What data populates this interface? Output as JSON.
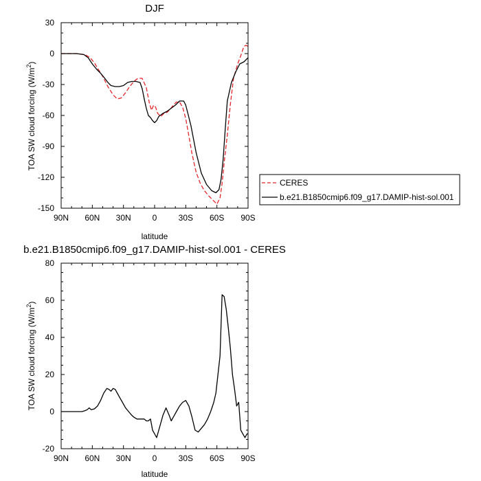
{
  "chart_data": [
    {
      "type": "line",
      "title": "DJF",
      "xlabel": "latitude",
      "ylabel": "TOA SW cloud forcing (W/m²)",
      "xlim": [
        90,
        -90
      ],
      "ylim": [
        -150,
        30
      ],
      "xticks": [
        90,
        60,
        30,
        0,
        -30,
        -60,
        -90
      ],
      "xtick_labels": [
        "90N",
        "60N",
        "30N",
        "0",
        "30S",
        "60S",
        "90S"
      ],
      "yticks": [
        30,
        0,
        -30,
        -60,
        -90,
        -120,
        -150
      ],
      "ytick_labels": [
        "30",
        "0",
        "-30",
        "-60",
        "-90",
        "-120",
        "-150"
      ],
      "legend": {
        "placement": "right",
        "entries": [
          "CERES",
          "b.e21.B1850cmip6.f09_g17.DAMIP-hist-sol.001"
        ]
      },
      "series": [
        {
          "name": "CERES",
          "color": "#e3242b",
          "dash": true,
          "x": [
            90,
            75,
            67,
            62,
            58,
            55,
            50,
            45,
            40,
            36,
            32,
            28,
            24,
            20,
            16,
            12,
            8,
            5,
            3,
            1,
            -1,
            -3,
            -6,
            -9,
            -12,
            -15,
            -18,
            -21,
            -24,
            -27,
            -30,
            -33,
            -36,
            -40,
            -44,
            -48,
            -52,
            -56,
            -60,
            -63,
            -65,
            -67,
            -70,
            -73,
            -76,
            -80,
            -83,
            -86,
            -88,
            -90
          ],
          "y": [
            0,
            0,
            -1,
            -4,
            -9,
            -14,
            -22,
            -32,
            -40,
            -44,
            -43,
            -38,
            -32,
            -27,
            -24,
            -24,
            -33,
            -48,
            -55,
            -50,
            -52,
            -58,
            -61,
            -58,
            -57,
            -54,
            -50,
            -47,
            -47,
            -52,
            -63,
            -80,
            -97,
            -115,
            -126,
            -133,
            -138,
            -142,
            -146,
            -140,
            -126,
            -106,
            -79,
            -49,
            -24,
            -10,
            -2,
            7,
            8,
            7
          ]
        },
        {
          "name": "b.e21.B1850cmip6.f09_g17.DAMIP-hist-sol.001",
          "color": "#000000",
          "dash": false,
          "x": [
            90,
            75,
            68,
            64,
            60,
            56,
            52,
            48,
            45,
            42,
            38,
            34,
            30,
            26,
            22,
            18,
            14,
            12,
            10,
            8,
            6,
            4,
            2,
            0,
            -2,
            -4,
            -8,
            -12,
            -16,
            -20,
            -24,
            -28,
            -30,
            -32,
            -35,
            -40,
            -45,
            -50,
            -55,
            -59,
            -62,
            -64,
            -66,
            -68,
            -70,
            -74,
            -78,
            -82,
            -86,
            -90
          ],
          "y": [
            0,
            0,
            -1,
            -4,
            -10,
            -15,
            -19,
            -24,
            -28,
            -31,
            -32,
            -32,
            -31,
            -28,
            -27,
            -27,
            -28,
            -34,
            -44,
            -53,
            -60,
            -62,
            -65,
            -67,
            -65,
            -61,
            -58,
            -56,
            -53,
            -50,
            -46,
            -46,
            -50,
            -58,
            -70,
            -96,
            -116,
            -127,
            -133,
            -135,
            -132,
            -122,
            -103,
            -73,
            -46,
            -28,
            -18,
            -10,
            -8,
            -4
          ]
        }
      ]
    },
    {
      "type": "line",
      "title": "b.e21.B1850cmip6.f09_g17.DAMIP-hist-sol.001 - CERES",
      "xlabel": "latitude",
      "ylabel": "TOA SW cloud forcing (W/m²)",
      "xlim": [
        90,
        -90
      ],
      "ylim": [
        -20,
        80
      ],
      "xticks": [
        90,
        60,
        30,
        0,
        -30,
        -60,
        -90
      ],
      "xtick_labels": [
        "90N",
        "60N",
        "30N",
        "0",
        "30S",
        "60S",
        "90S"
      ],
      "yticks": [
        80,
        60,
        40,
        20,
        0,
        -20
      ],
      "ytick_labels": [
        "80",
        "60",
        "40",
        "20",
        "0",
        "-20"
      ],
      "series": [
        {
          "color": "#000000",
          "dash": false,
          "x": [
            90,
            80,
            75,
            70,
            67,
            65,
            63,
            61,
            58,
            55,
            52,
            49,
            46,
            44,
            42,
            40,
            38,
            36,
            34,
            31,
            28,
            25,
            22,
            20,
            17,
            14,
            12,
            10,
            8,
            6,
            4,
            2,
            0,
            -2,
            -5,
            -8,
            -11,
            -14,
            -16,
            -18,
            -21,
            -24,
            -27,
            -30,
            -33,
            -36,
            -39,
            -42,
            -45,
            -48,
            -51,
            -54,
            -57,
            -59,
            -61,
            -63,
            -65,
            -67,
            -69,
            -71,
            -73,
            -75,
            -77,
            -79,
            -81,
            -83,
            -85,
            -87,
            -89,
            -90
          ],
          "y": [
            0,
            0,
            0,
            0,
            0.5,
            1,
            2,
            1,
            1.5,
            3,
            6,
            10,
            12.5,
            12,
            11,
            12.5,
            12,
            10,
            8,
            5,
            2,
            0,
            -2,
            -3,
            -4,
            -4,
            -4,
            -4,
            -5,
            -5,
            -4,
            -10,
            -12,
            -14,
            -8,
            -2,
            2,
            -2,
            -5,
            -3,
            0,
            3,
            5,
            6,
            3,
            -3,
            -10,
            -11,
            -9,
            -7,
            -4,
            0,
            5,
            10,
            20,
            30,
            63,
            62,
            55,
            45,
            34,
            20,
            12,
            3,
            5,
            -10,
            -12,
            -14,
            -12,
            -12
          ]
        }
      ]
    }
  ]
}
